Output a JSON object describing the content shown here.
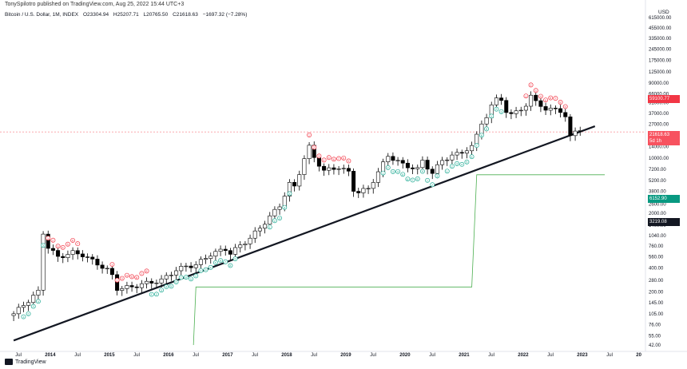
{
  "header": {
    "publisher": "TonySpilotro published on TradingView.com, Aug 25, 2022 15:44 UTC+3",
    "symbol": "Bitcoin / U.S. Dollar, 1M, INDEX",
    "open": "O23304.94",
    "high": "H25207.71",
    "low": "L20765.50",
    "close": "C21618.63",
    "change": "−1697.32 (−7.28%)"
  },
  "axis": {
    "currency": "USD"
  },
  "price_tags": {
    "high_level": {
      "text": "59100.77",
      "color": "#f23645"
    },
    "last_price": {
      "text": "21618.63",
      "sub": "5d 1h",
      "color": "#f7525f"
    },
    "support": {
      "text": "6152.90",
      "color": "#089981"
    },
    "bottom": {
      "text": "3219.08",
      "color": "#131722"
    }
  },
  "footer": {
    "brand": "TradingView"
  },
  "colors": {
    "up": "#ffffff",
    "down": "#000000",
    "setup_red": "#f23645",
    "setup_green": "#22ab94",
    "trendline": "#131722",
    "stoploss": "#4caf50"
  },
  "chart_data": {
    "type": "candlestick",
    "scale": "log",
    "y_ticks": [
      "615000.00",
      "455000.00",
      "335000.00",
      "245000.00",
      "175000.00",
      "125000.00",
      "90000.00",
      "66000.00",
      "51000.00",
      "37000.00",
      "27000.00",
      "20000.00",
      "14000.00",
      "10000.00",
      "7200.00",
      "5200.00",
      "3800.00",
      "2600.00",
      "2000.00",
      "1400.00",
      "1040.00",
      "760.00",
      "560.00",
      "400.00",
      "280.00",
      "200.00",
      "145.00",
      "105.00",
      "76.00",
      "55.00",
      "42.00"
    ],
    "x_labels": [
      "Jul",
      "2014",
      "Jul",
      "2015",
      "Jul",
      "2016",
      "Jul",
      "2017",
      "Jul",
      "2018",
      "Jul",
      "2019",
      "Jul",
      "2020",
      "Jul",
      "2021",
      "Jul",
      "2022",
      "Jul",
      "2023",
      "Jul",
      "20"
    ],
    "candles_sample": [
      {
        "date": "2013-06",
        "open": 108,
        "close": 97
      },
      {
        "date": "2013-11",
        "open": 200,
        "close": 1130
      },
      {
        "date": "2013-12",
        "open": 1130,
        "close": 740
      },
      {
        "date": "2015-01",
        "open": 320,
        "close": 220
      },
      {
        "date": "2017-12",
        "open": 10000,
        "close": 13800
      },
      {
        "date": "2018-12",
        "open": 4000,
        "close": 3700
      },
      {
        "date": "2019-06",
        "open": 8500,
        "close": 10800
      },
      {
        "date": "2021-03",
        "open": 45000,
        "close": 58800
      },
      {
        "date": "2021-10",
        "open": 43800,
        "close": 61300
      },
      {
        "date": "2022-06",
        "open": 31800,
        "close": 19900
      },
      {
        "date": "2022-08",
        "open": 23304.94,
        "close": 21618.63,
        "high": 25207.71,
        "low": 20765.5
      }
    ]
  }
}
